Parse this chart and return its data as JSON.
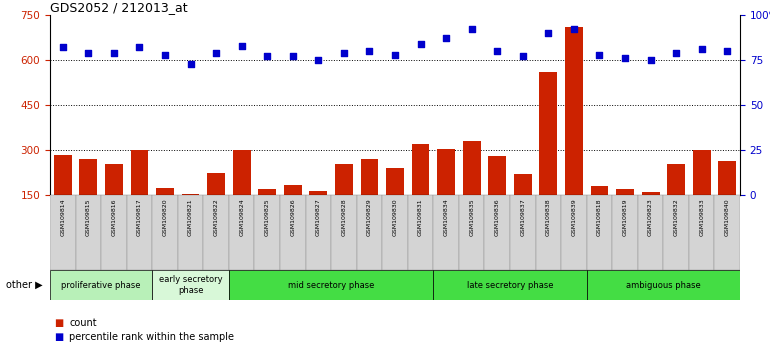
{
  "title": "GDS2052 / 212013_at",
  "samples": [
    "GSM109814",
    "GSM109815",
    "GSM109816",
    "GSM109817",
    "GSM109820",
    "GSM109821",
    "GSM109822",
    "GSM109824",
    "GSM109825",
    "GSM109826",
    "GSM109827",
    "GSM109828",
    "GSM109829",
    "GSM109830",
    "GSM109831",
    "GSM109834",
    "GSM109835",
    "GSM109836",
    "GSM109837",
    "GSM109838",
    "GSM109839",
    "GSM109818",
    "GSM109819",
    "GSM109823",
    "GSM109832",
    "GSM109833",
    "GSM109840"
  ],
  "counts": [
    285,
    270,
    255,
    300,
    175,
    155,
    225,
    300,
    170,
    185,
    162,
    255,
    270,
    240,
    320,
    305,
    330,
    280,
    220,
    560,
    710,
    180,
    170,
    160,
    255,
    300,
    265
  ],
  "percentile": [
    82,
    79,
    79,
    82,
    78,
    73,
    79,
    83,
    77,
    77,
    75,
    79,
    80,
    78,
    84,
    87,
    92,
    80,
    77,
    90,
    92,
    78,
    76,
    75,
    79,
    81,
    80
  ],
  "phases": [
    {
      "label": "proliferative phase",
      "start": 0,
      "end": 4,
      "color": "#b8f0b8"
    },
    {
      "label": "early secretory\nphase",
      "start": 4,
      "end": 7,
      "color": "#d8f8d8"
    },
    {
      "label": "mid secretory phase",
      "start": 7,
      "end": 15,
      "color": "#44dd44"
    },
    {
      "label": "late secretory phase",
      "start": 15,
      "end": 21,
      "color": "#44dd44"
    },
    {
      "label": "ambiguous phase",
      "start": 21,
      "end": 27,
      "color": "#44dd44"
    }
  ],
  "phase_separators": [
    4,
    7,
    15,
    21
  ],
  "ylim_left": [
    150,
    750
  ],
  "yticks_left": [
    150,
    300,
    450,
    600,
    750
  ],
  "ylim_right": [
    0,
    100
  ],
  "yticks_right": [
    0,
    25,
    50,
    75,
    100
  ],
  "bar_color": "#cc2200",
  "dot_color": "#0000cc",
  "bar_bottom": 150,
  "background_color": "#ffffff",
  "tick_bg_color": "#d8d8d8",
  "legend_items": [
    {
      "color": "#cc2200",
      "label": "count"
    },
    {
      "color": "#0000cc",
      "label": "percentile rank within the sample"
    }
  ]
}
